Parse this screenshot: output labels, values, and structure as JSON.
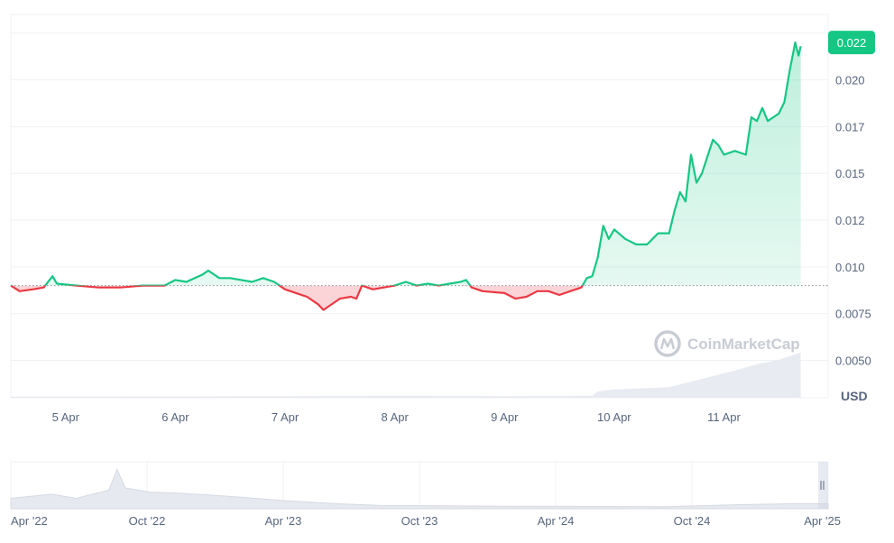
{
  "chart_data": {
    "type": "line",
    "unit": "USD",
    "watermark": "CoinMarketCap",
    "current_price": 0.022,
    "current_price_label": "0.022",
    "baseline": 0.009,
    "ylim": [
      0.003,
      0.0235
    ],
    "y_ticks": [
      {
        "value": 0.005,
        "label": "0.0050"
      },
      {
        "value": 0.0075,
        "label": "0.0075"
      },
      {
        "value": 0.01,
        "label": "0.010"
      },
      {
        "value": 0.0125,
        "label": "0.012"
      },
      {
        "value": 0.015,
        "label": "0.015"
      },
      {
        "value": 0.0175,
        "label": "0.017"
      },
      {
        "value": 0.02,
        "label": "0.020"
      }
    ],
    "xlim": [
      4.0,
      11.45
    ],
    "x_ticks": [
      {
        "value": 4.5,
        "label": "5 Apr"
      },
      {
        "value": 5.5,
        "label": "6 Apr"
      },
      {
        "value": 6.5,
        "label": "7 Apr"
      },
      {
        "value": 7.5,
        "label": "8 Apr"
      },
      {
        "value": 8.5,
        "label": "9 Apr"
      },
      {
        "value": 9.5,
        "label": "10 Apr"
      },
      {
        "value": 10.5,
        "label": "11 Apr"
      }
    ],
    "series": [
      {
        "points": [
          [
            4.0,
            0.009
          ],
          [
            4.08,
            0.0087
          ],
          [
            4.2,
            0.0088
          ],
          [
            4.3,
            0.0089
          ],
          [
            4.38,
            0.0095
          ],
          [
            4.42,
            0.0091
          ],
          [
            4.6,
            0.009
          ],
          [
            4.8,
            0.0089
          ],
          [
            5.0,
            0.0089
          ],
          [
            5.2,
            0.009
          ],
          [
            5.4,
            0.009
          ],
          [
            5.5,
            0.0093
          ],
          [
            5.6,
            0.0092
          ],
          [
            5.75,
            0.0096
          ],
          [
            5.8,
            0.0098
          ],
          [
            5.9,
            0.0094
          ],
          [
            6.0,
            0.0094
          ],
          [
            6.1,
            0.0093
          ],
          [
            6.2,
            0.0092
          ],
          [
            6.3,
            0.0094
          ],
          [
            6.4,
            0.0092
          ],
          [
            6.5,
            0.0088
          ],
          [
            6.6,
            0.0086
          ],
          [
            6.7,
            0.0084
          ],
          [
            6.8,
            0.008
          ],
          [
            6.85,
            0.0077
          ],
          [
            6.9,
            0.0079
          ],
          [
            7.0,
            0.0083
          ],
          [
            7.1,
            0.0084
          ],
          [
            7.15,
            0.0083
          ],
          [
            7.2,
            0.009
          ],
          [
            7.3,
            0.0088
          ],
          [
            7.4,
            0.0089
          ],
          [
            7.5,
            0.009
          ],
          [
            7.6,
            0.0092
          ],
          [
            7.7,
            0.009
          ],
          [
            7.8,
            0.0091
          ],
          [
            7.9,
            0.009
          ],
          [
            8.0,
            0.0091
          ],
          [
            8.1,
            0.0092
          ],
          [
            8.15,
            0.0093
          ],
          [
            8.2,
            0.0089
          ],
          [
            8.3,
            0.0087
          ],
          [
            8.5,
            0.0086
          ],
          [
            8.6,
            0.0083
          ],
          [
            8.7,
            0.0084
          ],
          [
            8.8,
            0.0087
          ],
          [
            8.9,
            0.0087
          ],
          [
            9.0,
            0.0085
          ],
          [
            9.1,
            0.0087
          ],
          [
            9.15,
            0.0088
          ],
          [
            9.2,
            0.0089
          ],
          [
            9.25,
            0.0094
          ],
          [
            9.3,
            0.0095
          ],
          [
            9.35,
            0.0105
          ],
          [
            9.4,
            0.0122
          ],
          [
            9.45,
            0.0115
          ],
          [
            9.5,
            0.012
          ],
          [
            9.6,
            0.0115
          ],
          [
            9.7,
            0.0112
          ],
          [
            9.8,
            0.0112
          ],
          [
            9.85,
            0.0115
          ],
          [
            9.9,
            0.0118
          ],
          [
            10.0,
            0.0118
          ],
          [
            10.05,
            0.013
          ],
          [
            10.1,
            0.014
          ],
          [
            10.15,
            0.0135
          ],
          [
            10.2,
            0.016
          ],
          [
            10.25,
            0.0145
          ],
          [
            10.3,
            0.015
          ],
          [
            10.4,
            0.0168
          ],
          [
            10.45,
            0.0165
          ],
          [
            10.5,
            0.016
          ],
          [
            10.6,
            0.0162
          ],
          [
            10.7,
            0.016
          ],
          [
            10.75,
            0.018
          ],
          [
            10.8,
            0.0178
          ],
          [
            10.85,
            0.0185
          ],
          [
            10.9,
            0.0178
          ],
          [
            10.95,
            0.018
          ],
          [
            11.0,
            0.0182
          ],
          [
            11.05,
            0.0188
          ],
          [
            11.1,
            0.0205
          ],
          [
            11.15,
            0.022
          ],
          [
            11.18,
            0.0213
          ],
          [
            11.2,
            0.0218
          ]
        ]
      }
    ],
    "volume": {
      "points": [
        [
          4.0,
          0.1
        ],
        [
          6.5,
          0.15
        ],
        [
          7.5,
          0.2
        ],
        [
          8.5,
          0.15
        ],
        [
          9.3,
          0.2
        ],
        [
          9.35,
          0.6
        ],
        [
          9.5,
          0.8
        ],
        [
          10.0,
          1.0
        ],
        [
          10.3,
          1.8
        ],
        [
          10.6,
          2.6
        ],
        [
          10.8,
          3.2
        ],
        [
          11.0,
          3.6
        ],
        [
          11.2,
          4.3
        ]
      ]
    },
    "navigator": {
      "x_ticks": [
        "Apr '22",
        "Oct '22",
        "Apr '23",
        "Oct '23",
        "Apr '24",
        "Oct '24",
        "Apr '25"
      ],
      "history": [
        [
          0,
          0.25
        ],
        [
          5,
          0.35
        ],
        [
          8,
          0.25
        ],
        [
          10,
          0.35
        ],
        [
          12,
          0.45
        ],
        [
          13,
          0.95
        ],
        [
          14,
          0.5
        ],
        [
          17,
          0.4
        ],
        [
          20,
          0.38
        ],
        [
          25,
          0.32
        ],
        [
          28,
          0.28
        ],
        [
          33,
          0.2
        ],
        [
          40,
          0.12
        ],
        [
          45,
          0.08
        ],
        [
          60,
          0.06
        ],
        [
          80,
          0.05
        ],
        [
          90,
          0.1
        ],
        [
          95,
          0.12
        ],
        [
          100,
          0.12
        ]
      ]
    }
  }
}
